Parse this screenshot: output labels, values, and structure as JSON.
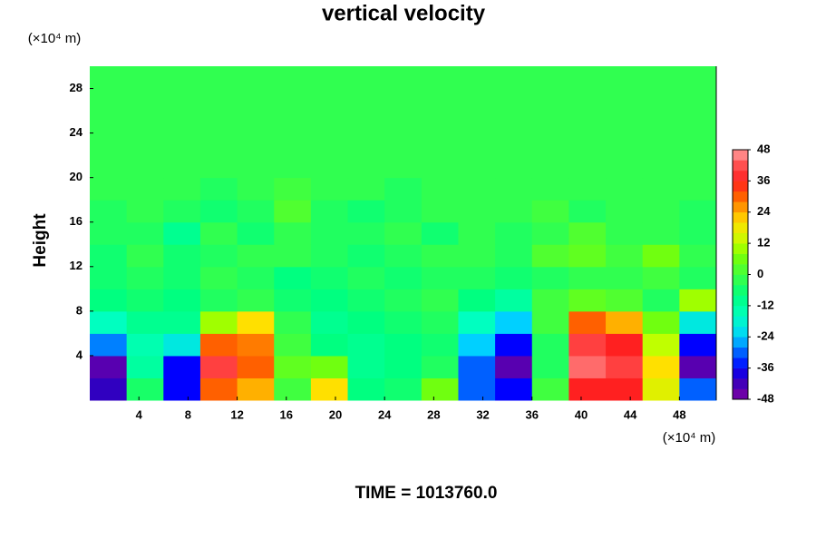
{
  "chart_data": {
    "type": "heatmap",
    "title": "vertical velocity",
    "ylabel": "Height",
    "yunit": "(×10⁴ m)",
    "xunit": "(×10⁴ m)",
    "annotation": "TIME = 1013760.0",
    "xlim": [
      0,
      51
    ],
    "ylim": [
      0,
      30
    ],
    "xticks": [
      4,
      8,
      12,
      16,
      20,
      24,
      28,
      32,
      36,
      40,
      44,
      48
    ],
    "yticks": [
      4,
      8,
      12,
      16,
      20,
      24,
      28
    ],
    "xbins": [
      0,
      3,
      6,
      9,
      12,
      15,
      18,
      21,
      24,
      27,
      30,
      33,
      36,
      39,
      42,
      45,
      48,
      51
    ],
    "ybins": [
      0,
      2,
      4,
      6,
      8,
      10,
      12,
      14,
      16,
      18,
      20,
      30
    ],
    "z": [
      [
        -40,
        -5,
        -36,
        30,
        24,
        0,
        20,
        -8,
        -6,
        6,
        -30,
        -36,
        0,
        36,
        36,
        16,
        -30
      ],
      [
        -44,
        -12,
        -36,
        40,
        30,
        4,
        6,
        -10,
        -8,
        -4,
        -30,
        -44,
        -4,
        44,
        40,
        20,
        -44
      ],
      [
        -28,
        -14,
        -20,
        30,
        28,
        0,
        -8,
        -10,
        -8,
        -6,
        -24,
        -36,
        -4,
        40,
        36,
        12,
        -36
      ],
      [
        -16,
        -10,
        -10,
        10,
        20,
        -2,
        -10,
        -8,
        -6,
        -4,
        -16,
        -24,
        0,
        30,
        24,
        6,
        -20
      ],
      [
        -8,
        -6,
        -8,
        -4,
        -2,
        -6,
        -8,
        -6,
        -4,
        -2,
        -8,
        -12,
        0,
        4,
        2,
        -4,
        10
      ],
      [
        -6,
        -4,
        -6,
        -2,
        -4,
        -8,
        -6,
        -4,
        -6,
        -4,
        -4,
        -6,
        -4,
        -2,
        -2,
        0,
        -4
      ],
      [
        -6,
        -2,
        -6,
        -4,
        -2,
        -2,
        -4,
        -6,
        -4,
        -2,
        -2,
        -4,
        2,
        4,
        0,
        6,
        -2
      ],
      [
        -4,
        -4,
        -10,
        -2,
        -6,
        -2,
        -4,
        -4,
        -2,
        -6,
        -2,
        -4,
        -2,
        2,
        -2,
        -2,
        -4
      ],
      [
        -4,
        -2,
        -4,
        -6,
        -4,
        2,
        -4,
        -6,
        -4,
        -2,
        -2,
        -2,
        0,
        -4,
        -2,
        -2,
        -4
      ],
      [
        -2,
        -2,
        -2,
        -4,
        -2,
        0,
        -2,
        -2,
        -4,
        -2,
        -2,
        -2,
        -2,
        -2,
        -2,
        -2,
        -2
      ],
      [
        -2,
        -2,
        -2,
        -2,
        -2,
        -2,
        -2,
        -2,
        -2,
        -2,
        -2,
        -2,
        -2,
        -2,
        -2,
        -2,
        -2
      ]
    ],
    "zlim": [
      -48,
      48
    ],
    "zstep": 4,
    "zticks": [
      48,
      36,
      24,
      12,
      0,
      -12,
      -24,
      -36,
      -48
    ],
    "colorscale": [
      [
        -48,
        "#8000a0"
      ],
      [
        -40,
        "#3000c0"
      ],
      [
        -36,
        "#0000ff"
      ],
      [
        -28,
        "#0080ff"
      ],
      [
        -24,
        "#00d0ff"
      ],
      [
        -16,
        "#00ffc0"
      ],
      [
        -8,
        "#00ff80"
      ],
      [
        0,
        "#40ff40"
      ],
      [
        8,
        "#80ff00"
      ],
      [
        12,
        "#c0ff00"
      ],
      [
        20,
        "#ffe000"
      ],
      [
        24,
        "#ffb000"
      ],
      [
        30,
        "#ff6000"
      ],
      [
        36,
        "#ff2020"
      ],
      [
        42,
        "#ff5050"
      ],
      [
        48,
        "#ffa0a0"
      ]
    ]
  }
}
